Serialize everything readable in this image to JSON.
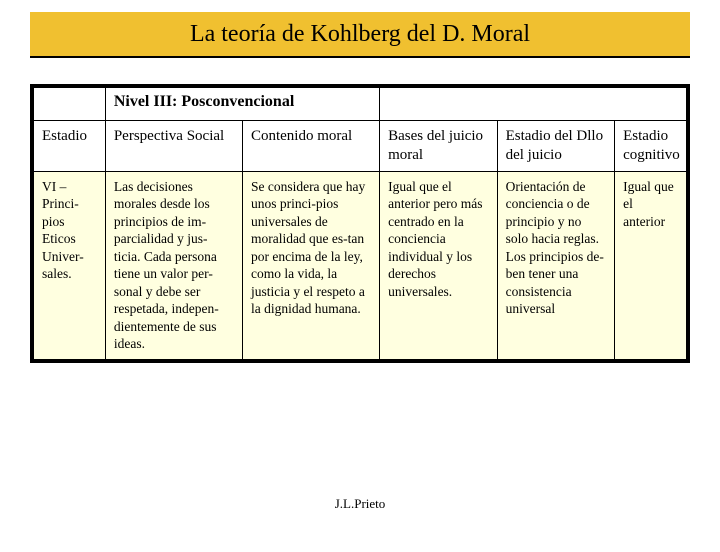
{
  "title": "La teoría de Kohlberg del D. Moral",
  "level_label": "Nivel III: Posconvencional",
  "columns": {
    "stage": "Estadio",
    "persp": "Perspectiva Social",
    "content": "Contenido moral",
    "bases": "Bases del juicio moral",
    "dllo": "Estadio del Dllo del juicio",
    "cog": "Estadio cognitivo"
  },
  "row": {
    "stage_roman": "VI –",
    "stage_name": "Princi-pios Eticos Univer-sales.",
    "persp": "Las decisiones morales desde los principios de im-parcialidad y jus-ticia. Cada persona tiene un valor per-sonal y debe ser respetada, indepen-dientemente de sus ideas.",
    "content": "Se considera que hay unos princi-pios universales de moralidad que es-tan por encima de la ley, como la vida, la justicia y el respeto a la dignidad humana.",
    "bases": "Igual que el anterior pero más centrado en la conciencia individual y los derechos universales.",
    "dllo": "Orientación de conciencia o de principio y no solo hacia reglas. Los principios de-ben tener una consistencia universal",
    "cog": "Igual que el anterior"
  },
  "footer": "J.L.Prieto",
  "colors": {
    "title_bg": "#f0c030",
    "data_bg": "#ffffe0",
    "border": "#000000",
    "text": "#000000",
    "page_bg": "#ffffff"
  },
  "typography": {
    "title_fontsize_pt": 18,
    "header_fontsize_pt": 11,
    "body_fontsize_pt": 10,
    "footer_fontsize_pt": 10,
    "font_family": "Times New Roman"
  }
}
